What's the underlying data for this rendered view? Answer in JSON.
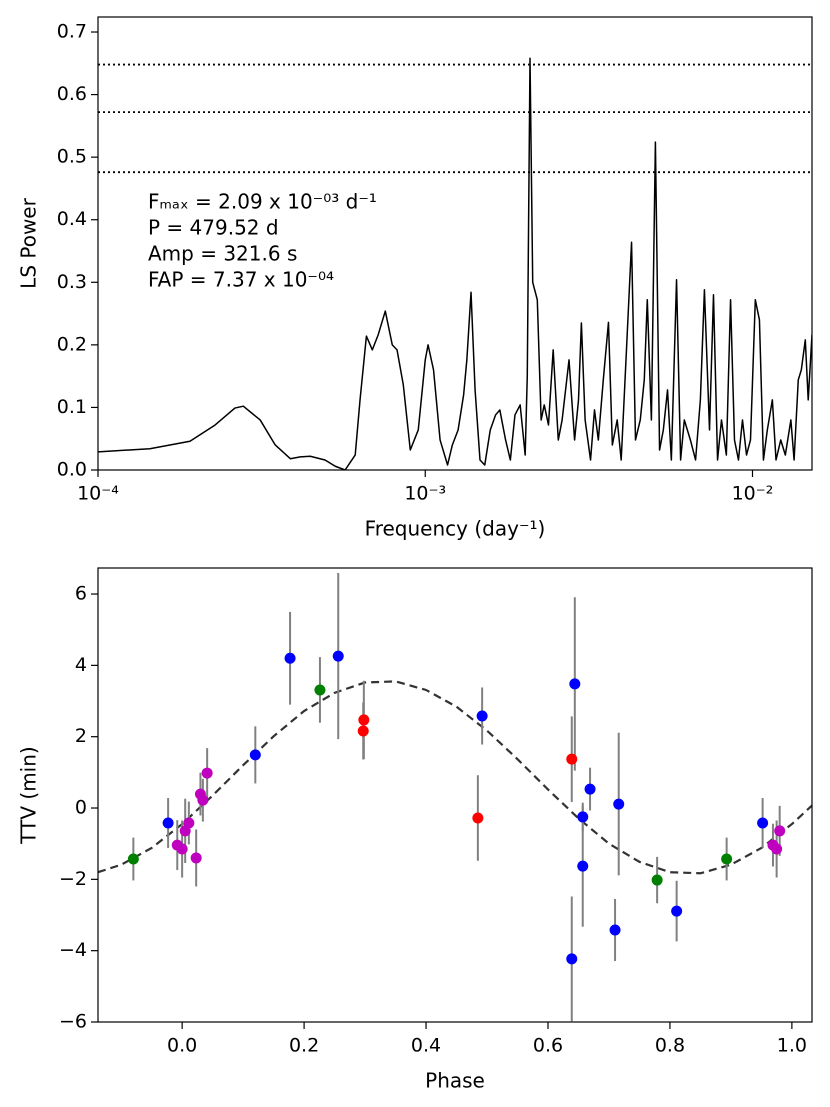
{
  "chart_data": [
    {
      "type": "line",
      "xscale": "log",
      "color": "#000000",
      "xlabel": "Frequency (day⁻¹)",
      "ylabel": "LS Power",
      "annotations": [
        "Fₘₐₓ = 2.09 x 10⁻⁰³ d⁻¹",
        "P = 479.52 d",
        "Amp = 321.6 s",
        "FAP = 7.37 x 10⁻⁰⁴"
      ],
      "hlines": [
        0.648,
        0.572,
        0.476
      ],
      "hline_color": "#000000",
      "xlim": [
        0.0001,
        0.0152
      ],
      "ylim": [
        0,
        0.724
      ],
      "xticks": [
        {
          "value": 0.0001,
          "label": "10⁻⁴"
        },
        {
          "value": 0.001,
          "label": "10⁻³"
        },
        {
          "value": 0.01,
          "label": "10⁻²"
        }
      ],
      "yticks": [
        {
          "value": 0,
          "label": "0.0"
        },
        0.1,
        0.2,
        0.3,
        0.4,
        0.5,
        0.6,
        0.7
      ],
      "x": [
        0.0001,
        0.000144,
        0.000191,
        0.000228,
        0.000262,
        0.000278,
        0.000313,
        0.000348,
        0.000387,
        0.000415,
        0.000445,
        0.000494,
        0.000531,
        0.000569,
        0.000611,
        0.000632,
        0.000661,
        0.000689,
        0.000718,
        0.000755,
        0.000793,
        0.00082,
        0.000857,
        0.0009,
        0.000952,
        0.001,
        0.00102,
        0.00106,
        0.00111,
        0.00117,
        0.00121,
        0.00126,
        0.00131,
        0.00134,
        0.00138,
        0.00142,
        0.00147,
        0.00152,
        0.00158,
        0.00164,
        0.00169,
        0.00176,
        0.00182,
        0.00188,
        0.00195,
        0.00202,
        0.00205,
        0.00209,
        0.00213,
        0.0022,
        0.00226,
        0.00231,
        0.00238,
        0.00246,
        0.00255,
        0.00262,
        0.00275,
        0.00286,
        0.00294,
        0.003,
        0.00308,
        0.0032,
        0.00329,
        0.00338,
        0.0035,
        0.00363,
        0.00373,
        0.00386,
        0.00397,
        0.00412,
        0.00427,
        0.00439,
        0.00454,
        0.00467,
        0.00477,
        0.00491,
        0.00505,
        0.0052,
        0.00534,
        0.0055,
        0.00565,
        0.00586,
        0.00603,
        0.00619,
        0.00646,
        0.0067,
        0.00693,
        0.00713,
        0.00739,
        0.0076,
        0.00782,
        0.00804,
        0.00832,
        0.00857,
        0.00881,
        0.00906,
        0.00932,
        0.00959,
        0.00986,
        0.0102,
        0.0105,
        0.0108,
        0.0111,
        0.0115,
        0.0118,
        0.0122,
        0.0126,
        0.0131,
        0.0134,
        0.0138,
        0.0141,
        0.0145,
        0.0148,
        0.0152
      ],
      "values": [
        0.029,
        0.034,
        0.046,
        0.072,
        0.099,
        0.102,
        0.08,
        0.04,
        0.018,
        0.021,
        0.022,
        0.016,
        0.006,
        0,
        0.024,
        0.112,
        0.214,
        0.192,
        0.216,
        0.254,
        0.2,
        0.192,
        0.136,
        0.032,
        0.064,
        0.176,
        0.2,
        0.16,
        0.048,
        0.008,
        0.04,
        0.064,
        0.12,
        0.176,
        0.284,
        0.128,
        0.016,
        0.008,
        0.064,
        0.088,
        0.096,
        0.048,
        0.016,
        0.088,
        0.104,
        0.024,
        0.15,
        0.658,
        0.3,
        0.272,
        0.08,
        0.104,
        0.072,
        0.192,
        0.048,
        0.08,
        0.176,
        0.048,
        0.112,
        0.235,
        0.08,
        0.016,
        0.096,
        0.048,
        0.144,
        0.236,
        0.04,
        0.08,
        0.016,
        0.192,
        0.364,
        0.048,
        0.08,
        0.144,
        0.272,
        0.08,
        0.524,
        0.032,
        0.064,
        0.128,
        0.016,
        0.304,
        0.016,
        0.08,
        0.048,
        0.016,
        0.112,
        0.288,
        0.064,
        0.28,
        0.016,
        0.08,
        0.024,
        0.272,
        0.048,
        0.016,
        0.08,
        0.024,
        0.048,
        0.272,
        0.24,
        0.016,
        0.064,
        0.112,
        0.016,
        0.048,
        0.024,
        0.08,
        0.016,
        0.144,
        0.16,
        0.208,
        0.112,
        0.216
      ]
    },
    {
      "type": "scatter",
      "xlabel": "Phase",
      "ylabel": "TTV (min)",
      "errorbar_color": "#808080",
      "xlim": [
        -0.138,
        1.033
      ],
      "ylim": [
        -6,
        6.73
      ],
      "xticks": [
        {
          "value": 0,
          "label": "0.0"
        },
        0.2,
        0.4,
        0.6,
        0.8,
        {
          "value": 1,
          "label": "1.0"
        }
      ],
      "yticks": [
        {
          "value": -6,
          "label": "−6"
        },
        {
          "value": -4,
          "label": "−4"
        },
        {
          "value": -2,
          "label": "−2"
        },
        0,
        2,
        4,
        6
      ],
      "model": {
        "color": "#333333",
        "style": "dashed",
        "x": [
          -0.138,
          -0.1,
          -0.05,
          0,
          0.05,
          0.1,
          0.15,
          0.2,
          0.25,
          0.3,
          0.35,
          0.4,
          0.45,
          0.5,
          0.55,
          0.6,
          0.65,
          0.7,
          0.75,
          0.8,
          0.85,
          0.9,
          0.95,
          1.0,
          1.033
        ],
        "values": [
          -1.8,
          -1.59,
          -1.12,
          -0.45,
          0.35,
          1.2,
          2.01,
          2.72,
          3.23,
          3.52,
          3.55,
          3.31,
          2.84,
          2.17,
          1.37,
          0.52,
          -0.29,
          -1.0,
          -1.51,
          -1.8,
          -1.83,
          -1.59,
          -1.12,
          -0.45,
          0.07
        ]
      },
      "series": [
        {
          "color": "#008000",
          "x": [
            -0.08,
            0.226,
            0.779,
            0.893
          ],
          "values": [
            -1.43,
            3.31,
            -2.02,
            -1.43
          ],
          "errors": [
            0.6,
            0.92,
            0.65,
            0.6
          ]
        },
        {
          "color": "#0000ff",
          "x": [
            -0.023,
            0.12,
            0.177,
            0.256,
            0.492,
            0.644,
            0.657,
            0.657,
            0.669,
            0.716,
            0.71,
            0.811,
            0.952,
            0.639
          ],
          "values": [
            -0.42,
            1.49,
            4.2,
            4.26,
            2.58,
            3.48,
            -0.25,
            -1.63,
            0.53,
            0.11,
            -3.42,
            -2.89,
            -0.42,
            -4.23
          ],
          "errors": [
            0.7,
            0.8,
            1.3,
            2.33,
            0.8,
            2.43,
            0.4,
            1.7,
            0.6,
            2.0,
            0.87,
            0.85,
            0.7,
            1.75
          ]
        },
        {
          "color": "#ff0000",
          "x": [
            0.298,
            0.297,
            0.639,
            0.485
          ],
          "values": [
            2.47,
            2.16,
            1.37,
            -0.28
          ],
          "errors": [
            1.1,
            0.8,
            1.2,
            1.2
          ]
        },
        {
          "color": "#bf00bf",
          "x": [
            -0.008,
            0.0,
            0.005,
            0.011,
            0.023,
            0.03,
            0.034,
            0.041,
            0.969,
            0.975,
            0.98
          ],
          "values": [
            -1.04,
            -1.15,
            -0.64,
            -0.42,
            -1.4,
            0.39,
            0.22,
            0.98,
            -1.04,
            -1.15,
            -0.64
          ],
          "errors": [
            0.7,
            0.8,
            0.9,
            0.6,
            0.8,
            0.6,
            0.6,
            0.7,
            0.6,
            0.8,
            0.7
          ]
        }
      ]
    }
  ]
}
